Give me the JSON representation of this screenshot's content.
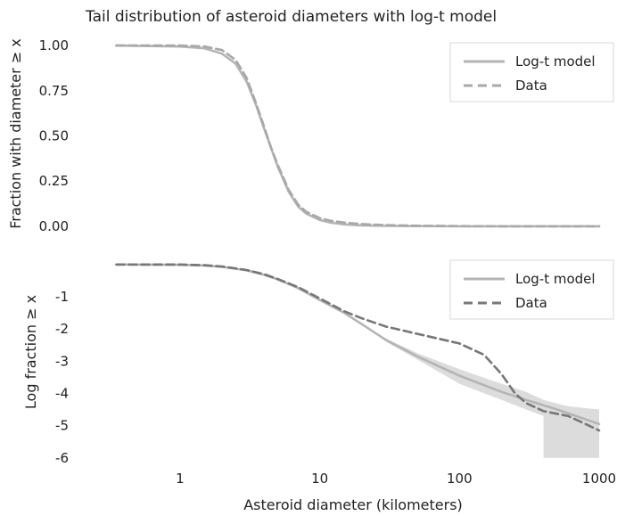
{
  "chart_data": {
    "type": "line",
    "title": "Tail distribution of asteroid diameters with log-t model",
    "xlabel": "Asteroid diameter (kilometers)",
    "xscale": "log",
    "xlim": [
      0.3,
      1000
    ],
    "xticks": [
      1,
      10,
      100,
      1000
    ],
    "xtick_labels": [
      "1",
      "10",
      "100",
      "1000"
    ],
    "grid": false,
    "panels": [
      {
        "id": "top",
        "ylabel": "Fraction with diameter ≥ x",
        "ylim": [
          -0.05,
          1.05
        ],
        "yticks": [
          0,
          0.25,
          0.5,
          0.75,
          1.0
        ],
        "ytick_labels": [
          "0.00",
          "0.25",
          "0.50",
          "0.75",
          "1.00"
        ],
        "legend_position": "top-right",
        "series": [
          {
            "name": "Log-t model",
            "color": "#b4b4b4",
            "dash": "solid",
            "x": [
              0.35,
              1,
              1.5,
              2,
              2.5,
              3,
              3.5,
              4,
              4.5,
              5,
              6,
              7,
              8,
              10,
              12,
              15,
              20,
              30,
              50,
              100,
              200,
              500,
              1000
            ],
            "y": [
              1.0,
              0.995,
              0.985,
              0.955,
              0.9,
              0.8,
              0.67,
              0.54,
              0.43,
              0.33,
              0.19,
              0.11,
              0.07,
              0.035,
              0.02,
              0.01,
              0.005,
              0.002,
              0.001,
              0.0,
              0.0,
              0.0,
              0.0
            ]
          },
          {
            "name": "Data",
            "color": "#a8a8a8",
            "dash": "dashed",
            "x": [
              0.35,
              1,
              1.5,
              2,
              2.5,
              3,
              3.5,
              4,
              4.5,
              5,
              6,
              7,
              8,
              10,
              12,
              15,
              20,
              30,
              50,
              100,
              200,
              500,
              1000
            ],
            "y": [
              1.0,
              1.0,
              0.995,
              0.975,
              0.92,
              0.82,
              0.68,
              0.55,
              0.43,
              0.34,
              0.2,
              0.12,
              0.08,
              0.045,
              0.03,
              0.02,
              0.012,
              0.006,
              0.003,
              0.001,
              0.0,
              0.0,
              0.0
            ]
          }
        ]
      },
      {
        "id": "bottom",
        "ylabel": "Log fraction ≥ x",
        "ylim": [
          -6.2,
          0.3
        ],
        "yticks": [
          -6,
          -5,
          -4,
          -3,
          -2,
          -1
        ],
        "ytick_labels": [
          "-6",
          "-5",
          "-4",
          "-3",
          "-2",
          "-1"
        ],
        "legend_position": "top-right",
        "series": [
          {
            "name": "Log-t model",
            "color": "#b4b4b4",
            "dash": "solid",
            "x": [
              0.35,
              1,
              1.5,
              2,
              3,
              4,
              5,
              7,
              10,
              15,
              20,
              30,
              50,
              100,
              200,
              300,
              500,
              1000
            ],
            "y": [
              0,
              -0.01,
              -0.03,
              -0.07,
              -0.18,
              -0.32,
              -0.46,
              -0.73,
              -1.1,
              -1.5,
              -1.85,
              -2.35,
              -2.85,
              -3.45,
              -3.95,
              -4.2,
              -4.5,
              -4.95
            ]
          },
          {
            "name": "Data",
            "color": "#777777",
            "dash": "dashed",
            "x": [
              0.35,
              1,
              1.5,
              2,
              3,
              4,
              5,
              7,
              10,
              15,
              20,
              30,
              50,
              100,
              150,
              200,
              250,
              300,
              400,
              600,
              800,
              1000
            ],
            "y": [
              0,
              0,
              -0.02,
              -0.06,
              -0.17,
              -0.3,
              -0.45,
              -0.7,
              -1.05,
              -1.45,
              -1.67,
              -1.93,
              -2.15,
              -2.45,
              -2.8,
              -3.4,
              -4.0,
              -4.3,
              -4.55,
              -4.7,
              -4.95,
              -5.15
            ]
          }
        ],
        "band": {
          "color": "#dcdcdc",
          "x": [
            20,
            30,
            50,
            100,
            200,
            300,
            400,
            400,
            600,
            1000
          ],
          "lower": [
            -1.85,
            -2.4,
            -2.95,
            -3.7,
            -4.2,
            -4.5,
            -4.7,
            -6.0,
            -6.0,
            -6.0
          ],
          "upper": [
            -1.85,
            -2.3,
            -2.75,
            -3.25,
            -3.7,
            -3.95,
            -4.2,
            -4.2,
            -4.4,
            -4.5
          ]
        }
      }
    ]
  }
}
